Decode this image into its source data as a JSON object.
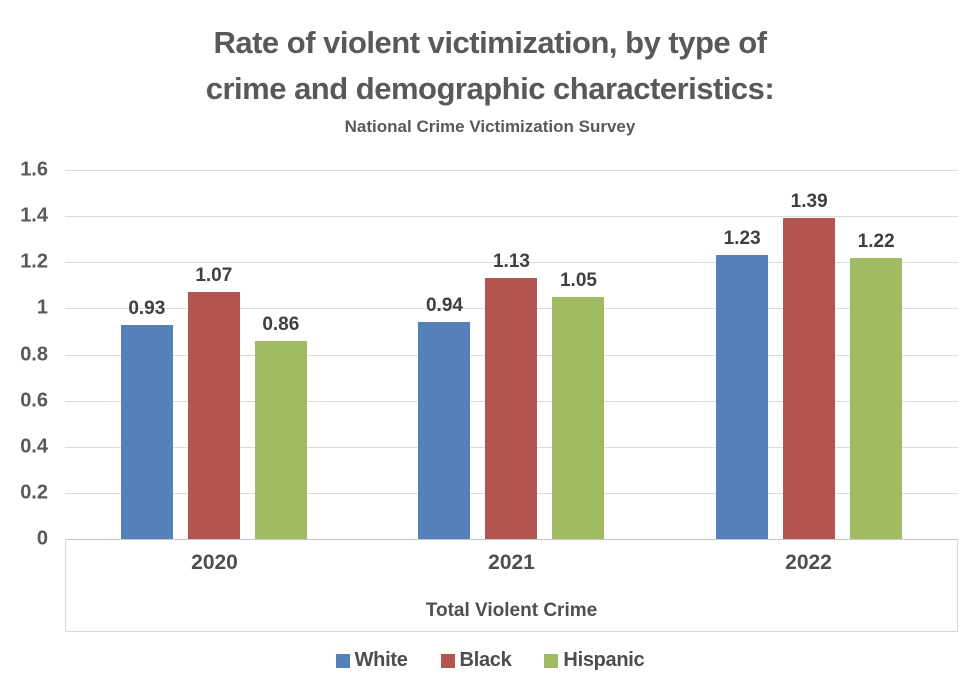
{
  "header": {
    "title_line1": "Rate of violent victimization, by type of",
    "title_line2": "crime and demographic characteristics:",
    "subtitle": "National Crime Victimization Survey"
  },
  "chart_data": {
    "type": "bar",
    "title": "Rate of violent victimization, by type of crime and demographic characteristics:",
    "subtitle": "National Crime Victimization Survey",
    "categories": [
      "2020",
      "2021",
      "2022"
    ],
    "series": [
      {
        "name": "White",
        "color": "#5580BA",
        "values": [
          0.93,
          0.94,
          1.23
        ],
        "labels": [
          "0.93",
          "0.94",
          "1.23"
        ]
      },
      {
        "name": "Black",
        "color": "#B25551",
        "values": [
          1.07,
          1.13,
          1.39
        ],
        "labels": [
          "1.07",
          "1.13",
          "1.39"
        ]
      },
      {
        "name": "Hispanic",
        "color": "#A0BB62",
        "values": [
          0.86,
          1.05,
          1.22
        ],
        "labels": [
          "0.86",
          "1.05",
          "1.22"
        ]
      }
    ],
    "xlabel": "Total Violent Crime",
    "ylabel": "",
    "ylim": [
      0,
      1.6
    ],
    "ytick_step": 0.2,
    "yticks": [
      "1.6",
      "1.4",
      "1.2",
      "1",
      "0.8",
      "0.6",
      "0.4",
      "0.2",
      "0"
    ],
    "grid": true,
    "legend_position": "bottom",
    "value_labels": true
  },
  "colors": {
    "title_text": "#595959",
    "axis_text": "#4f4f4f",
    "value_label_text": "#3f3f3f",
    "gridline": "#dcdcdc",
    "axis_line": "#c6c6c6",
    "band_border": "#d9d9d9",
    "background": "#ffffff"
  }
}
